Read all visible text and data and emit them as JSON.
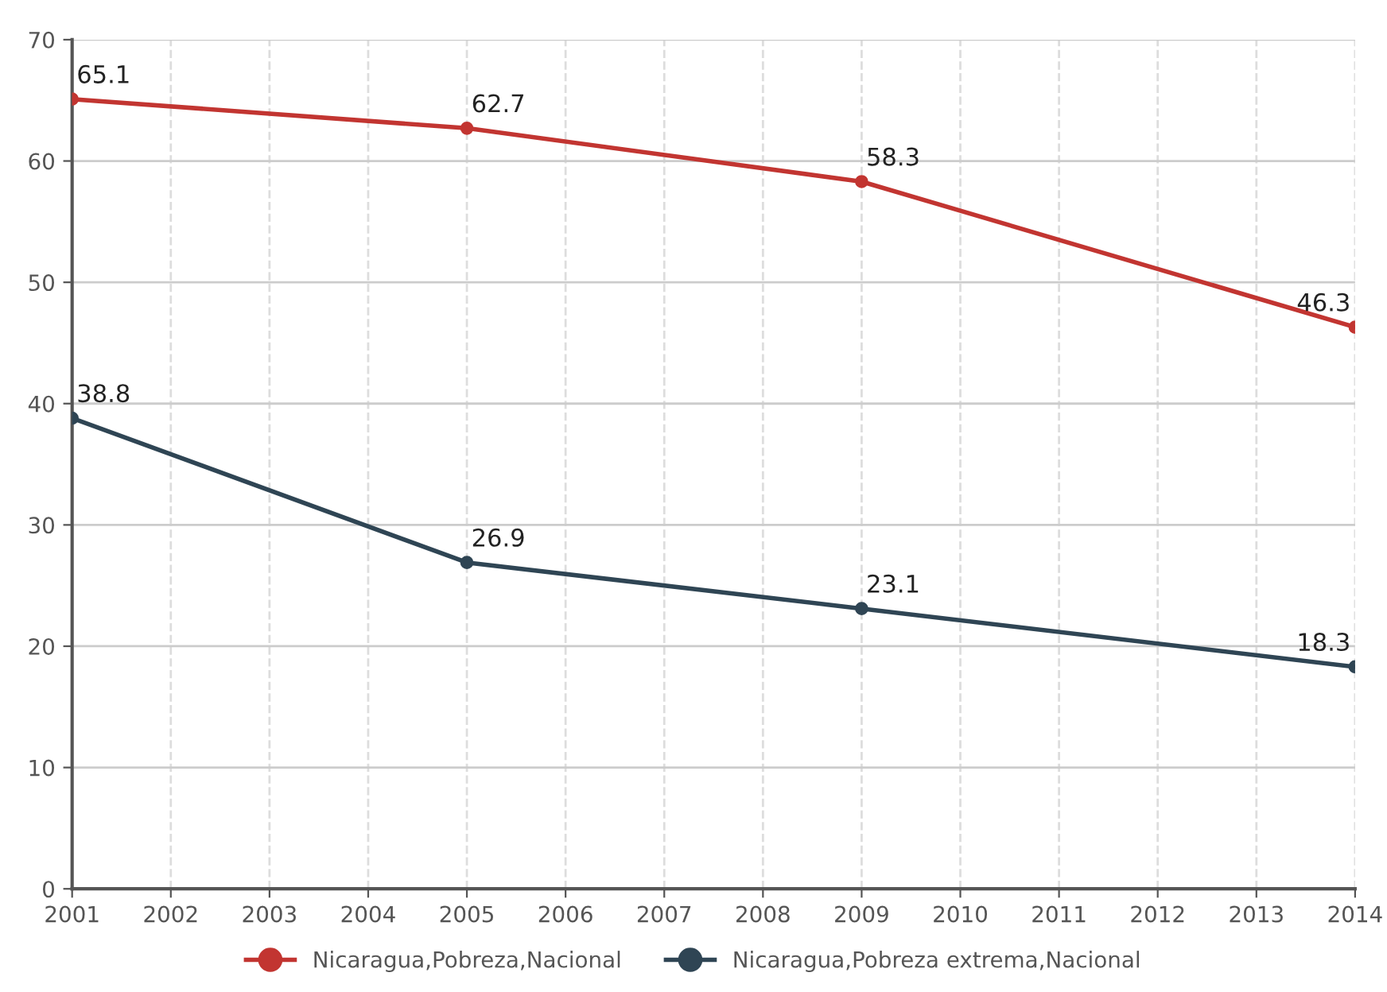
{
  "chart_data": {
    "type": "line",
    "x": [
      2001,
      2005,
      2009,
      2014
    ],
    "series": [
      {
        "name": "Nicaragua,Pobreza,Nacional",
        "color": "#c23531",
        "values": [
          65.1,
          62.7,
          58.3,
          46.3
        ]
      },
      {
        "name": "Nicaragua,Pobreza extrema,Nacional",
        "color": "#2f4554",
        "values": [
          38.8,
          26.9,
          23.1,
          18.3
        ]
      }
    ],
    "xlim": [
      2001,
      2014
    ],
    "xticks": [
      2001,
      2002,
      2003,
      2004,
      2005,
      2006,
      2007,
      2008,
      2009,
      2010,
      2011,
      2012,
      2013,
      2014
    ],
    "ylim": [
      0,
      70
    ],
    "yticks": [
      0,
      10,
      20,
      30,
      40,
      50,
      60,
      70
    ],
    "grid": true,
    "legend": "bottom",
    "marker": "circle",
    "line_style": "solid",
    "data_labels": true
  }
}
